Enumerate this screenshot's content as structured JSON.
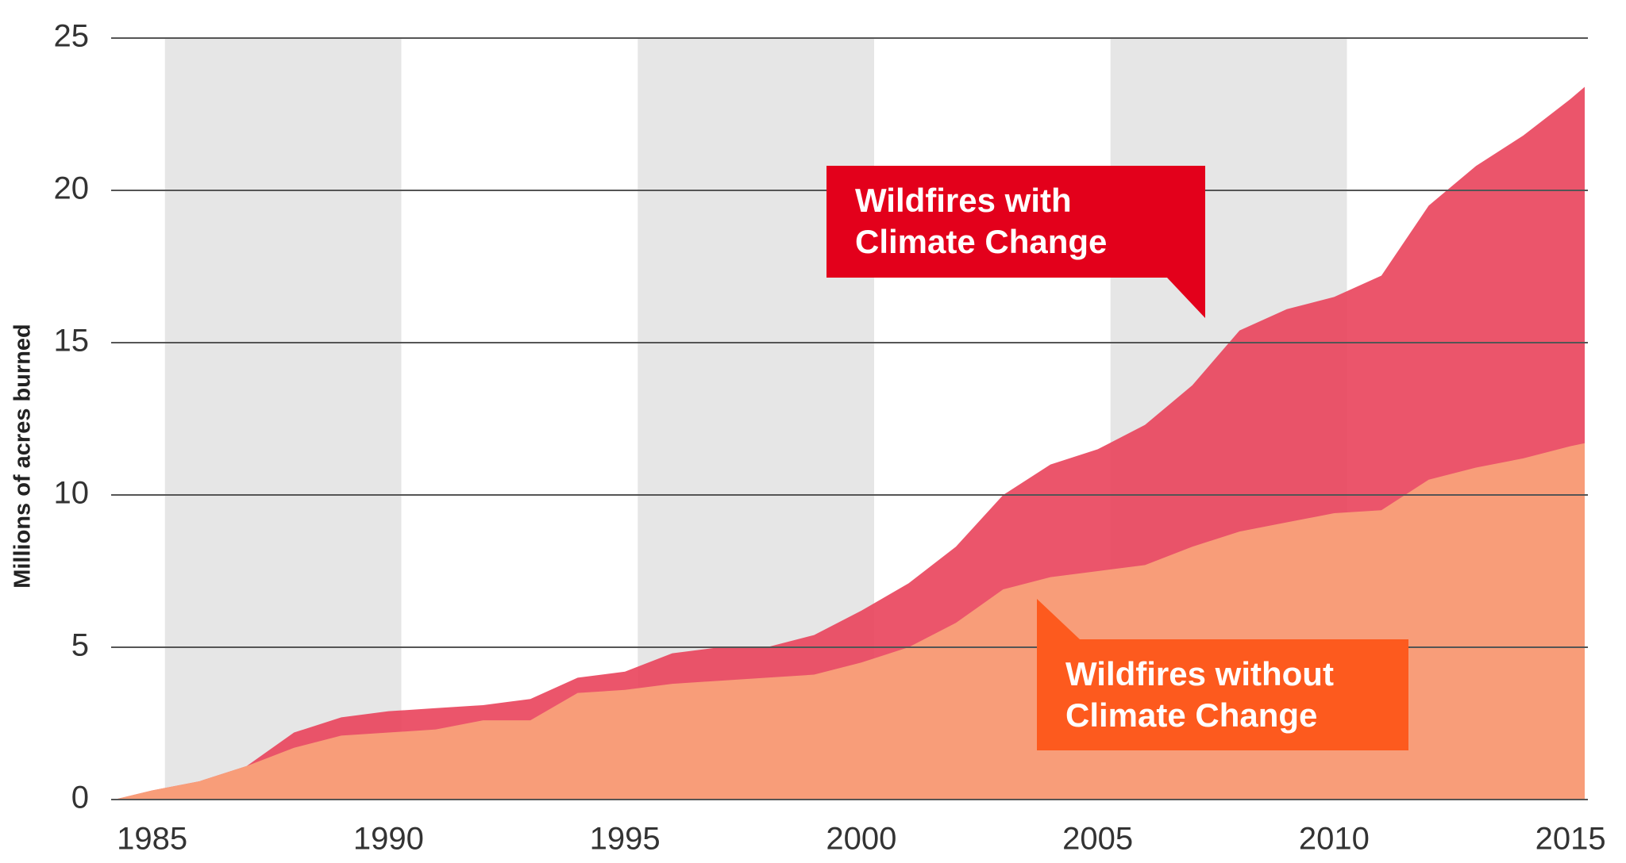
{
  "chart_data": {
    "type": "area",
    "y_label": "Millions of acres burned",
    "x": [
      1984.2,
      1985,
      1986,
      1987,
      1988,
      1989,
      1990,
      1991,
      1992,
      1993,
      1994,
      1995,
      1996,
      1997,
      1998,
      1999,
      2000,
      2001,
      2002,
      2003,
      2004,
      2005,
      2006,
      2007,
      2008,
      2009,
      2010,
      2011,
      2012,
      2013,
      2014,
      2015,
      2015.3
    ],
    "series": [
      {
        "name": "Wildfires with Climate Change",
        "color": "#e9475e",
        "callout_color": "#e3001b",
        "values": [
          0,
          0.3,
          0.6,
          1.1,
          2.2,
          2.7,
          2.9,
          3.0,
          3.1,
          3.3,
          4.0,
          4.2,
          4.8,
          5.0,
          5.0,
          5.4,
          6.2,
          7.1,
          8.3,
          10.0,
          11.0,
          11.5,
          12.3,
          13.6,
          15.4,
          16.1,
          16.5,
          17.2,
          19.5,
          20.8,
          21.8,
          23.0,
          23.4
        ]
      },
      {
        "name": "Wildfires without Climate Change",
        "color": "#f9a47b",
        "callout_color": "#fd5a1e",
        "values": [
          0,
          0.3,
          0.6,
          1.1,
          1.7,
          2.1,
          2.2,
          2.3,
          2.6,
          2.6,
          3.5,
          3.6,
          3.8,
          3.9,
          4.0,
          4.1,
          4.5,
          5.0,
          5.8,
          6.9,
          7.3,
          7.5,
          7.7,
          8.3,
          8.8,
          9.1,
          9.4,
          9.5,
          10.5,
          10.9,
          11.2,
          11.6,
          11.7
        ]
      }
    ],
    "xlim": [
      1984.2,
      2015.3
    ],
    "xticks": [
      1985,
      1990,
      1995,
      2000,
      2005,
      2010,
      2015
    ],
    "ylim": [
      0,
      25
    ],
    "yticks": [
      0,
      5,
      10,
      15,
      20,
      25
    ],
    "grid": true
  }
}
